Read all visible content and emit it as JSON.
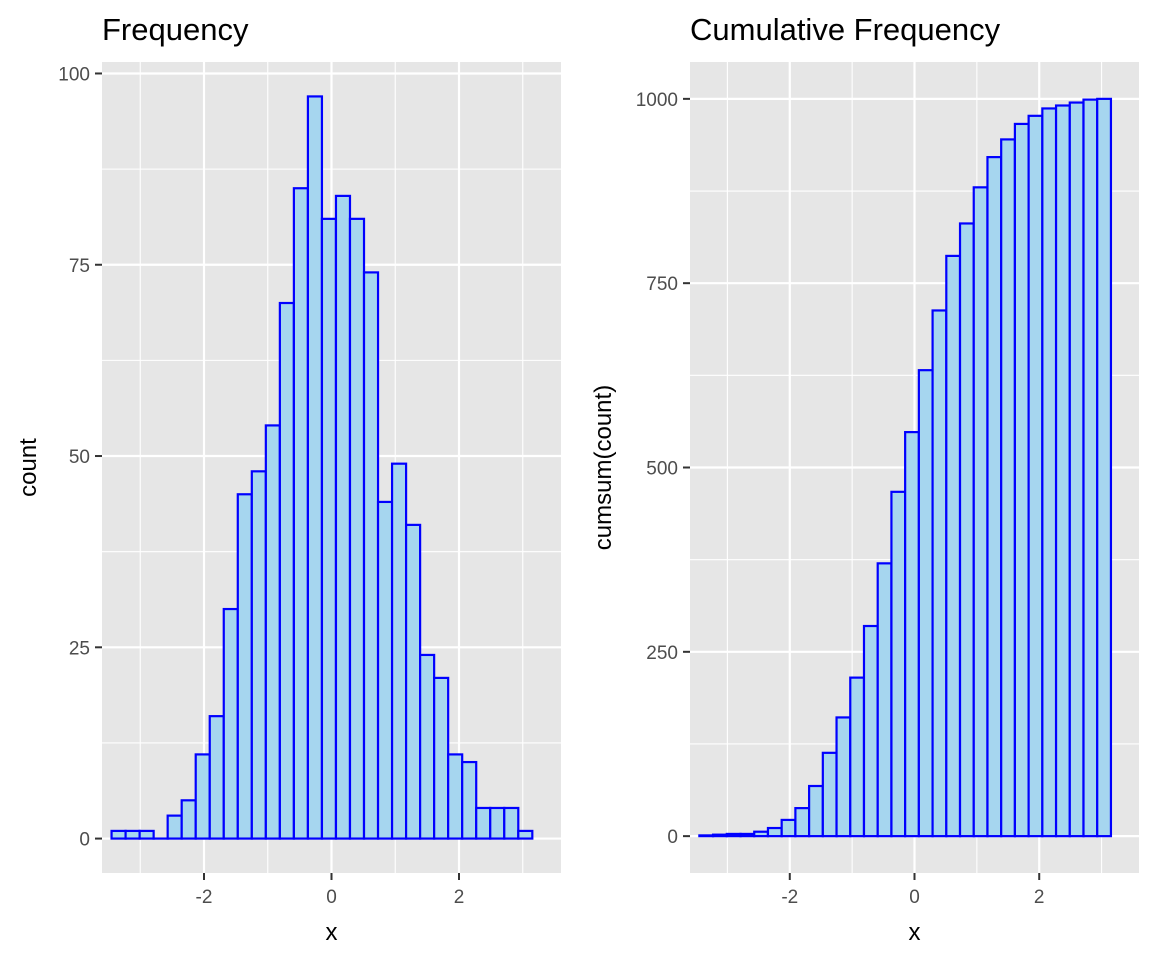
{
  "colors": {
    "bar_fill": "#a6d6ef",
    "bar_outline": "#0000ff",
    "panel_background": "#e6e6e6",
    "gridlines": "#ffffff"
  },
  "chart_data": [
    {
      "type": "bar",
      "title": "Frequency",
      "xlabel": "x",
      "ylabel": "count",
      "xlim": [
        -3.6,
        3.6
      ],
      "ylim": [
        -4.5,
        101.5
      ],
      "xticks": [
        -2,
        0,
        2
      ],
      "xtick_labels": [
        "-2",
        "0",
        "2"
      ],
      "yticks": [
        0,
        25,
        50,
        75,
        100
      ],
      "ytick_labels": [
        "0",
        "25",
        "50",
        "75",
        "100"
      ],
      "grid": true,
      "bin_width": 0.22,
      "bin_centers": [
        -3.34,
        -3.12,
        -2.9,
        -2.68,
        -2.46,
        -2.24,
        -2.02,
        -1.8,
        -1.58,
        -1.36,
        -1.14,
        -0.92,
        -0.7,
        -0.48,
        -0.26,
        -0.04,
        0.18,
        0.4,
        0.62,
        0.84,
        1.06,
        1.28,
        1.5,
        1.72,
        1.94,
        2.16,
        2.38,
        2.6,
        2.82,
        3.04
      ],
      "values": [
        1,
        1,
        1,
        0,
        3,
        5,
        11,
        16,
        30,
        45,
        48,
        54,
        70,
        85,
        97,
        81,
        84,
        81,
        74,
        44,
        49,
        41,
        24,
        21,
        11,
        10,
        4,
        4,
        4,
        1
      ]
    },
    {
      "type": "bar",
      "title": "Cumulative Frequency",
      "xlabel": "x",
      "ylabel": "cumsum(count)",
      "xlim": [
        -3.6,
        3.6
      ],
      "ylim": [
        -50,
        1050
      ],
      "xticks": [
        -2,
        0,
        2
      ],
      "xtick_labels": [
        "-2",
        "0",
        "2"
      ],
      "yticks": [
        0,
        250,
        500,
        750,
        1000
      ],
      "ytick_labels": [
        "0",
        "250",
        "500",
        "750",
        "1000"
      ],
      "grid": true,
      "bin_width": 0.22,
      "bin_centers": [
        -3.34,
        -3.12,
        -2.9,
        -2.68,
        -2.46,
        -2.24,
        -2.02,
        -1.8,
        -1.58,
        -1.36,
        -1.14,
        -0.92,
        -0.7,
        -0.48,
        -0.26,
        -0.04,
        0.18,
        0.4,
        0.62,
        0.84,
        1.06,
        1.28,
        1.5,
        1.72,
        1.94,
        2.16,
        2.38,
        2.6,
        2.82,
        3.04
      ],
      "values": [
        1,
        2,
        3,
        3,
        6,
        11,
        22,
        38,
        68,
        113,
        161,
        215,
        285,
        370,
        467,
        548,
        632,
        713,
        787,
        831,
        880,
        921,
        945,
        966,
        977,
        987,
        991,
        995,
        999,
        1000
      ]
    }
  ]
}
